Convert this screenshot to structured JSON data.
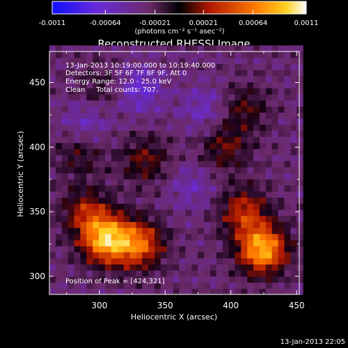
{
  "chart_data": {
    "type": "heatmap",
    "title": "Reconstructed RHESSI Image",
    "xlabel": "Heliocentric X (arcsec)",
    "ylabel": "Heliocentric Y (arcsec)",
    "xlim": [
      262,
      452
    ],
    "ylim": [
      286,
      474
    ],
    "x_ticks": [
      300,
      350,
      400,
      450
    ],
    "y_ticks": [
      300,
      350,
      400,
      450
    ],
    "colorbar": {
      "ticks": [
        "-0.0011",
        "-0.00064",
        "-0.00021",
        "0.00021",
        "0.00064",
        "0.0011"
      ],
      "units": "(photons cm⁻² s⁻¹ asec⁻²)",
      "range": [
        -0.0011,
        0.0011
      ]
    },
    "annotations": [
      "13-Jan-2013 10:19:00.000 to 10:19:40.000",
      "Detectors: 3F 5F 6F 7F 8F 9F, Att 0",
      "Energy Range: 12.0 - 25.0 keV",
      "Clean     Total counts: 707."
    ],
    "peak_label": "Position of Peak = [424,321]",
    "sources": [
      {
        "x": 305,
        "y": 329,
        "flux": 0.0011
      },
      {
        "x": 330,
        "y": 325,
        "flux": 0.0008
      },
      {
        "x": 424,
        "y": 321,
        "flux": 0.0011
      },
      {
        "x": 410,
        "y": 350,
        "flux": 0.0006
      },
      {
        "x": 290,
        "y": 350,
        "flux": 0.0005
      },
      {
        "x": 335,
        "y": 390,
        "flux": 0.0004
      },
      {
        "x": 395,
        "y": 400,
        "flux": 0.0004
      },
      {
        "x": 410,
        "y": 430,
        "flux": 0.00035
      },
      {
        "x": 300,
        "y": 445,
        "flux": 0.00025
      },
      {
        "x": 285,
        "y": 395,
        "flux": 0.0003
      }
    ],
    "negative_regions": [
      {
        "x": 330,
        "y": 445,
        "flux": -0.0004
      },
      {
        "x": 290,
        "y": 420,
        "flux": -0.0003
      },
      {
        "x": 380,
        "y": 430,
        "flux": -0.0003
      },
      {
        "x": 370,
        "y": 370,
        "flux": -0.00025
      }
    ]
  },
  "footer": {
    "date": "13-Jan-2013 22:05"
  }
}
